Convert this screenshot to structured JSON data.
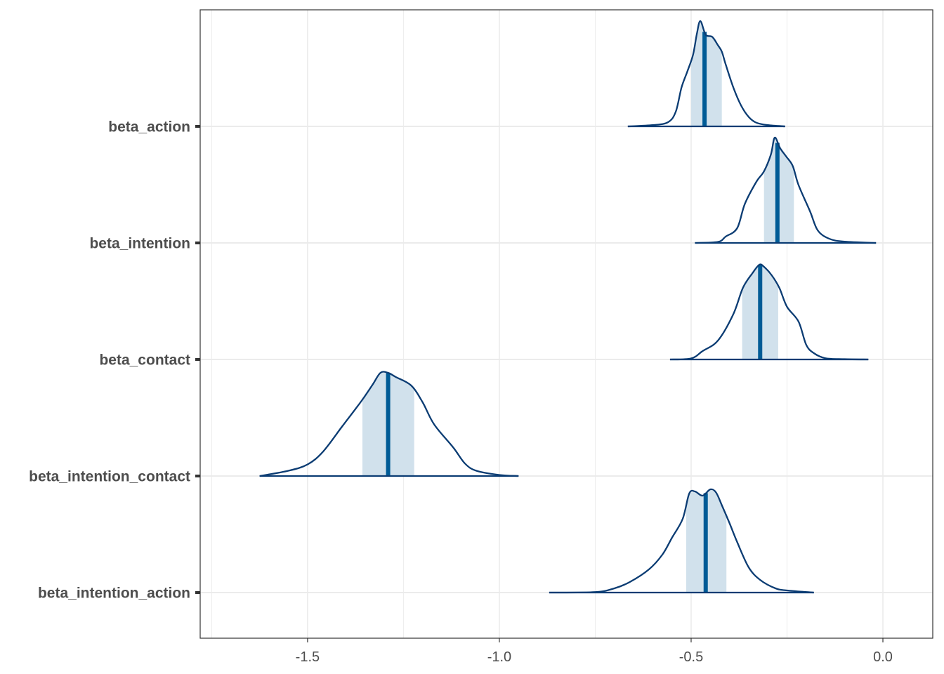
{
  "chart_data": {
    "type": "area",
    "subtype": "posterior-density-ridges",
    "title": "",
    "xlabel": "",
    "ylabel": "",
    "xlim": [
      -1.78,
      0.13
    ],
    "x_ticks": [
      -1.5,
      -1.0,
      -0.5,
      0.0
    ],
    "x_tick_labels": [
      "-1.5",
      "-1.0",
      "-0.5",
      "0.0"
    ],
    "grid": true,
    "legend": "none",
    "colors": {
      "line": "#0b3c73",
      "median": "#005b96",
      "interval_fill": "#d1e1ec",
      "grid": "#ebebeb",
      "panel_border": "#333333",
      "tick_label": "#4d4d4d"
    },
    "series": [
      {
        "name": "beta_action",
        "median": -0.465,
        "interval": [
          -0.5,
          -0.42
        ],
        "density": [
          [
            -0.665,
            0
          ],
          [
            -0.6,
            0.012
          ],
          [
            -0.56,
            0.04
          ],
          [
            -0.54,
            0.14
          ],
          [
            -0.525,
            0.37
          ],
          [
            -0.51,
            0.52
          ],
          [
            -0.495,
            0.68
          ],
          [
            -0.485,
            0.88
          ],
          [
            -0.476,
            1.0
          ],
          [
            -0.462,
            0.87
          ],
          [
            -0.445,
            0.85
          ],
          [
            -0.43,
            0.77
          ],
          [
            -0.42,
            0.71
          ],
          [
            -0.41,
            0.59
          ],
          [
            -0.39,
            0.37
          ],
          [
            -0.37,
            0.2
          ],
          [
            -0.35,
            0.09
          ],
          [
            -0.33,
            0.035
          ],
          [
            -0.3,
            0.012
          ],
          [
            -0.255,
            0
          ]
        ]
      },
      {
        "name": "beta_intention",
        "median": -0.275,
        "interval": [
          -0.31,
          -0.232
        ],
        "density": [
          [
            -0.49,
            0
          ],
          [
            -0.43,
            0.01
          ],
          [
            -0.41,
            0.06
          ],
          [
            -0.38,
            0.14
          ],
          [
            -0.36,
            0.37
          ],
          [
            -0.33,
            0.58
          ],
          [
            -0.31,
            0.68
          ],
          [
            -0.292,
            0.84
          ],
          [
            -0.282,
            1.0
          ],
          [
            -0.268,
            0.9
          ],
          [
            -0.252,
            0.82
          ],
          [
            -0.235,
            0.73
          ],
          [
            -0.22,
            0.55
          ],
          [
            -0.19,
            0.3
          ],
          [
            -0.17,
            0.12
          ],
          [
            -0.14,
            0.04
          ],
          [
            -0.1,
            0.012
          ],
          [
            -0.018,
            0
          ]
        ]
      },
      {
        "name": "beta_contact",
        "median": -0.32,
        "interval": [
          -0.367,
          -0.273
        ],
        "density": [
          [
            -0.555,
            0
          ],
          [
            -0.5,
            0.01
          ],
          [
            -0.47,
            0.08
          ],
          [
            -0.43,
            0.18
          ],
          [
            -0.39,
            0.43
          ],
          [
            -0.365,
            0.68
          ],
          [
            -0.34,
            0.82
          ],
          [
            -0.322,
            0.9
          ],
          [
            -0.31,
            0.88
          ],
          [
            -0.29,
            0.8
          ],
          [
            -0.27,
            0.68
          ],
          [
            -0.25,
            0.5
          ],
          [
            -0.22,
            0.36
          ],
          [
            -0.2,
            0.14
          ],
          [
            -0.18,
            0.06
          ],
          [
            -0.15,
            0.012
          ],
          [
            -0.1,
            0.003
          ],
          [
            -0.038,
            0
          ]
        ]
      },
      {
        "name": "beta_intention_contact",
        "median": -1.29,
        "interval": [
          -1.357,
          -1.222
        ],
        "density": [
          [
            -1.625,
            0
          ],
          [
            -1.55,
            0.05
          ],
          [
            -1.5,
            0.11
          ],
          [
            -1.46,
            0.23
          ],
          [
            -1.41,
            0.47
          ],
          [
            -1.36,
            0.71
          ],
          [
            -1.33,
            0.87
          ],
          [
            -1.31,
            0.98
          ],
          [
            -1.29,
            0.98
          ],
          [
            -1.27,
            0.94
          ],
          [
            -1.23,
            0.86
          ],
          [
            -1.2,
            0.7
          ],
          [
            -1.17,
            0.49
          ],
          [
            -1.12,
            0.27
          ],
          [
            -1.09,
            0.12
          ],
          [
            -1.06,
            0.05
          ],
          [
            -1.0,
            0.01
          ],
          [
            -0.95,
            0
          ]
        ]
      },
      {
        "name": "beta_intention_action",
        "median": -0.462,
        "interval": [
          -0.513,
          -0.408
        ],
        "density": [
          [
            -0.87,
            0
          ],
          [
            -0.75,
            0.005
          ],
          [
            -0.7,
            0.04
          ],
          [
            -0.66,
            0.1
          ],
          [
            -0.61,
            0.22
          ],
          [
            -0.575,
            0.36
          ],
          [
            -0.55,
            0.52
          ],
          [
            -0.522,
            0.7
          ],
          [
            -0.505,
            0.94
          ],
          [
            -0.49,
            0.96
          ],
          [
            -0.47,
            0.92
          ],
          [
            -0.45,
            0.98
          ],
          [
            -0.435,
            0.95
          ],
          [
            -0.42,
            0.83
          ],
          [
            -0.4,
            0.66
          ],
          [
            -0.38,
            0.48
          ],
          [
            -0.35,
            0.24
          ],
          [
            -0.32,
            0.12
          ],
          [
            -0.28,
            0.04
          ],
          [
            -0.25,
            0.02
          ],
          [
            -0.18,
            0
          ]
        ]
      }
    ]
  }
}
